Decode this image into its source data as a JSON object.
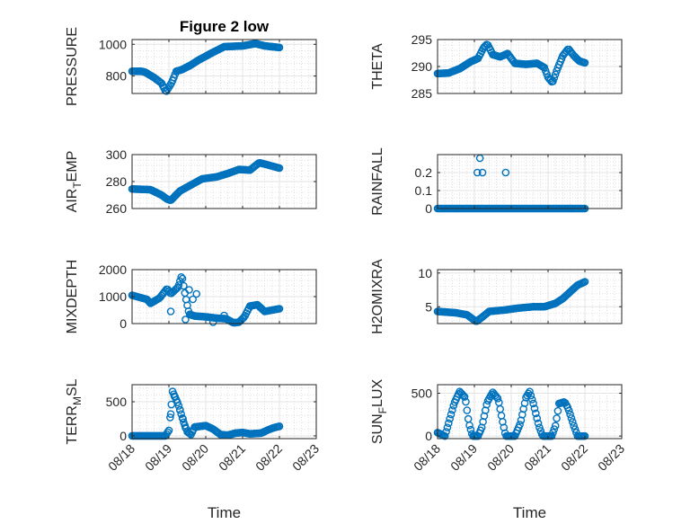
{
  "figure": {
    "title": "Figure 2 low"
  },
  "colors": {
    "marker": "#0072BD",
    "axis": "#262626",
    "grid": "#d9d9d9",
    "background": "#ffffff"
  },
  "chart_data": [
    {
      "type": "scatter",
      "id": "pressure",
      "title": "Figure 2 low",
      "ylabel": "PRESSURE",
      "ylabel_sub": "",
      "ylabel_tail": "",
      "xlabel": "",
      "xlim": [
        0,
        5
      ],
      "ylim": [
        690,
        1030
      ],
      "yticks": [
        800,
        1000
      ],
      "ytick_labels": [
        "800",
        "1000"
      ],
      "xticks": [
        0,
        1,
        2,
        3,
        4,
        5
      ],
      "xtick_labels": [
        "08/18",
        "08/19",
        "08/20",
        "08/21",
        "08/22",
        "08/23"
      ],
      "show_xtick_labels": false,
      "x_end": 4.0,
      "keys": [
        [
          0,
          830
        ],
        [
          0.25,
          830
        ],
        [
          0.35,
          825
        ],
        [
          0.6,
          790
        ],
        [
          0.8,
          755
        ],
        [
          0.92,
          700
        ],
        [
          1.0,
          730
        ],
        [
          1.08,
          760
        ],
        [
          1.2,
          830
        ],
        [
          1.35,
          840
        ],
        [
          1.6,
          870
        ],
        [
          1.8,
          900
        ],
        [
          2.2,
          950
        ],
        [
          2.5,
          985
        ],
        [
          3.0,
          990
        ],
        [
          3.35,
          1005
        ],
        [
          3.6,
          990
        ],
        [
          4.0,
          980
        ]
      ]
    },
    {
      "type": "scatter",
      "id": "theta",
      "title": "",
      "ylabel": "THETA",
      "ylabel_sub": "",
      "ylabel_tail": "",
      "xlabel": "",
      "xlim": [
        0,
        5
      ],
      "ylim": [
        285,
        295
      ],
      "yticks": [
        285,
        290,
        295
      ],
      "ytick_labels": [
        "285",
        "290",
        "295"
      ],
      "xticks": [
        0,
        1,
        2,
        3,
        4,
        5
      ],
      "xtick_labels": [
        "08/18",
        "08/19",
        "08/20",
        "08/21",
        "08/22",
        "08/23"
      ],
      "show_xtick_labels": false,
      "x_end": 4.0,
      "keys": [
        [
          0,
          288.7
        ],
        [
          0.3,
          288.8
        ],
        [
          0.6,
          289.6
        ],
        [
          0.9,
          290.9
        ],
        [
          1.1,
          291.5
        ],
        [
          1.25,
          293.5
        ],
        [
          1.35,
          294.2
        ],
        [
          1.5,
          292.2
        ],
        [
          1.7,
          291.8
        ],
        [
          1.9,
          292.4
        ],
        [
          2.1,
          290.6
        ],
        [
          2.4,
          290.4
        ],
        [
          2.7,
          290.6
        ],
        [
          2.9,
          289.8
        ],
        [
          3.0,
          288.0
        ],
        [
          3.12,
          287.0
        ],
        [
          3.25,
          289.5
        ],
        [
          3.4,
          292.0
        ],
        [
          3.55,
          293.3
        ],
        [
          3.7,
          292.0
        ],
        [
          3.85,
          291.0
        ],
        [
          4.0,
          290.7
        ]
      ]
    },
    {
      "type": "scatter",
      "id": "air-temp",
      "title": "",
      "ylabel": "AIR",
      "ylabel_sub": "T",
      "ylabel_tail": "EMP",
      "xlabel": "",
      "xlim": [
        0,
        5
      ],
      "ylim": [
        260,
        300
      ],
      "yticks": [
        260,
        280,
        300
      ],
      "ytick_labels": [
        "260",
        "280",
        "300"
      ],
      "xticks": [
        0,
        1,
        2,
        3,
        4,
        5
      ],
      "xtick_labels": [
        "08/18",
        "08/19",
        "08/20",
        "08/21",
        "08/22",
        "08/23"
      ],
      "show_xtick_labels": false,
      "x_end": 4.0,
      "keys": [
        [
          0,
          274.5
        ],
        [
          0.5,
          274.0
        ],
        [
          0.8,
          270.0
        ],
        [
          0.95,
          267.0
        ],
        [
          1.05,
          266.0
        ],
        [
          1.3,
          273.0
        ],
        [
          1.6,
          277.5
        ],
        [
          1.9,
          282.0
        ],
        [
          2.3,
          283.5
        ],
        [
          2.6,
          286.0
        ],
        [
          2.9,
          289.0
        ],
        [
          3.2,
          288.5
        ],
        [
          3.45,
          294.0
        ],
        [
          3.6,
          293.0
        ],
        [
          4.0,
          290.0
        ]
      ]
    },
    {
      "type": "scatter",
      "id": "rainfall",
      "title": "",
      "ylabel": "RAINFALL",
      "ylabel_sub": "",
      "ylabel_tail": "",
      "xlabel": "",
      "xlim": [
        0,
        5
      ],
      "ylim": [
        0,
        0.3
      ],
      "yticks": [
        0,
        0.1,
        0.2
      ],
      "ytick_labels": [
        "0",
        "0.1",
        "0.2"
      ],
      "xticks": [
        0,
        1,
        2,
        3,
        4,
        5
      ],
      "xtick_labels": [
        "08/18",
        "08/19",
        "08/20",
        "08/21",
        "08/22",
        "08/23"
      ],
      "show_xtick_labels": false,
      "x_end": 4.0,
      "keys": [
        [
          0,
          0
        ],
        [
          4.0,
          0
        ]
      ],
      "extra_points": [
        [
          1.08,
          0.2
        ],
        [
          1.15,
          0.28
        ],
        [
          1.22,
          0.2
        ],
        [
          1.85,
          0.2
        ]
      ]
    },
    {
      "type": "scatter",
      "id": "mixdepth",
      "title": "",
      "ylabel": "MIXDEPTH",
      "ylabel_sub": "",
      "ylabel_tail": "",
      "xlabel": "",
      "xlim": [
        0,
        5
      ],
      "ylim": [
        0,
        2000
      ],
      "yticks": [
        0,
        1000,
        2000
      ],
      "ytick_labels": [
        "0",
        "1000",
        "2000"
      ],
      "xticks": [
        0,
        1,
        2,
        3,
        4,
        5
      ],
      "xtick_labels": [
        "08/18",
        "08/19",
        "08/20",
        "08/21",
        "08/22",
        "08/23"
      ],
      "show_xtick_labels": false,
      "x_end": 4.0,
      "keys": [
        [
          0,
          1050
        ],
        [
          0.4,
          900
        ],
        [
          0.5,
          750
        ],
        [
          0.75,
          950
        ],
        [
          0.95,
          1300
        ],
        [
          1.05,
          1100
        ],
        [
          1.25,
          1350
        ],
        [
          1.35,
          1800
        ],
        [
          1.45,
          1000
        ],
        [
          1.55,
          350
        ],
        [
          1.7,
          280
        ],
        [
          2.0,
          250
        ],
        [
          2.3,
          200
        ],
        [
          2.55,
          180
        ],
        [
          2.75,
          30
        ],
        [
          2.9,
          50
        ],
        [
          3.05,
          250
        ],
        [
          3.2,
          650
        ],
        [
          3.4,
          700
        ],
        [
          3.6,
          450
        ],
        [
          3.8,
          500
        ],
        [
          4.0,
          550
        ]
      ],
      "extra_points": [
        [
          1.05,
          450
        ],
        [
          1.55,
          1250
        ],
        [
          1.65,
          900
        ],
        [
          1.75,
          1100
        ],
        [
          1.45,
          150
        ],
        [
          2.2,
          50
        ],
        [
          2.5,
          300
        ]
      ]
    },
    {
      "type": "scatter",
      "id": "h2omixra",
      "title": "",
      "ylabel": "H2OMIXRA",
      "ylabel_sub": "",
      "ylabel_tail": "",
      "xlabel": "",
      "xlim": [
        0,
        5
      ],
      "ylim": [
        2.5,
        10.5
      ],
      "yticks": [
        5,
        10
      ],
      "ytick_labels": [
        "5",
        "10"
      ],
      "xticks": [
        0,
        1,
        2,
        3,
        4,
        5
      ],
      "xtick_labels": [
        "08/18",
        "08/19",
        "08/20",
        "08/21",
        "08/22",
        "08/23"
      ],
      "show_xtick_labels": false,
      "x_end": 4.0,
      "keys": [
        [
          0,
          4.3
        ],
        [
          0.5,
          4.1
        ],
        [
          0.8,
          3.8
        ],
        [
          0.95,
          3.2
        ],
        [
          1.05,
          2.8
        ],
        [
          1.2,
          3.4
        ],
        [
          1.4,
          4.3
        ],
        [
          1.8,
          4.5
        ],
        [
          2.2,
          4.8
        ],
        [
          2.6,
          5.0
        ],
        [
          2.9,
          5.0
        ],
        [
          3.2,
          5.5
        ],
        [
          3.4,
          6.2
        ],
        [
          3.6,
          7.2
        ],
        [
          3.8,
          8.2
        ],
        [
          4.0,
          8.7
        ]
      ]
    },
    {
      "type": "scatter",
      "id": "terr-msl",
      "title": "",
      "ylabel": "TERR",
      "ylabel_sub": "M",
      "ylabel_tail": "SL",
      "xlabel": "Time",
      "xlim": [
        0,
        5
      ],
      "ylim": [
        -40,
        750
      ],
      "yticks": [
        0,
        500
      ],
      "ytick_labels": [
        "0",
        "500"
      ],
      "xticks": [
        0,
        1,
        2,
        3,
        4,
        5
      ],
      "xtick_labels": [
        "08/18",
        "08/19",
        "08/20",
        "08/21",
        "08/22",
        "08/23"
      ],
      "show_xtick_labels": true,
      "x_end": 4.0,
      "keys": [
        [
          0,
          0
        ],
        [
          0.9,
          0
        ],
        [
          1.0,
          80
        ],
        [
          1.1,
          650
        ],
        [
          1.25,
          470
        ],
        [
          1.4,
          200
        ],
        [
          1.5,
          60
        ],
        [
          1.6,
          20
        ],
        [
          1.7,
          130
        ],
        [
          2.0,
          150
        ],
        [
          2.2,
          100
        ],
        [
          2.4,
          20
        ],
        [
          2.6,
          10
        ],
        [
          2.8,
          40
        ],
        [
          3.0,
          50
        ],
        [
          3.2,
          30
        ],
        [
          3.5,
          40
        ],
        [
          3.7,
          90
        ],
        [
          3.85,
          120
        ],
        [
          4.0,
          140
        ]
      ],
      "extra_points": [
        [
          1.05,
          320
        ],
        [
          1.15,
          580
        ],
        [
          1.3,
          380
        ],
        [
          1.38,
          250
        ],
        [
          1.45,
          120
        ]
      ]
    },
    {
      "type": "scatter",
      "id": "sun-flux",
      "title": "",
      "ylabel": "SUN",
      "ylabel_sub": "F",
      "ylabel_tail": "LUX",
      "xlabel": "Time",
      "xlim": [
        0,
        5
      ],
      "ylim": [
        -30,
        600
      ],
      "yticks": [
        0,
        500
      ],
      "ytick_labels": [
        "0",
        "500"
      ],
      "xticks": [
        0,
        1,
        2,
        3,
        4,
        5
      ],
      "xtick_labels": [
        "08/18",
        "08/19",
        "08/20",
        "08/21",
        "08/22",
        "08/23"
      ],
      "show_xtick_labels": true,
      "x_end": 4.0,
      "keys": [
        [
          0,
          40
        ],
        [
          0.1,
          20
        ],
        [
          0.2,
          0
        ],
        [
          0.3,
          150
        ],
        [
          0.45,
          380
        ],
        [
          0.6,
          520
        ],
        [
          0.75,
          450
        ],
        [
          0.85,
          150
        ],
        [
          0.95,
          0
        ],
        [
          1.1,
          0
        ],
        [
          1.2,
          100
        ],
        [
          1.35,
          400
        ],
        [
          1.5,
          510
        ],
        [
          1.65,
          430
        ],
        [
          1.75,
          200
        ],
        [
          1.85,
          0
        ],
        [
          2.1,
          0
        ],
        [
          2.25,
          150
        ],
        [
          2.4,
          450
        ],
        [
          2.5,
          520
        ],
        [
          2.6,
          380
        ],
        [
          2.75,
          120
        ],
        [
          2.85,
          0
        ],
        [
          3.1,
          0
        ],
        [
          3.2,
          120
        ],
        [
          3.3,
          380
        ],
        [
          3.45,
          400
        ],
        [
          3.55,
          320
        ],
        [
          3.7,
          120
        ],
        [
          3.8,
          0
        ],
        [
          4.0,
          0
        ]
      ]
    }
  ]
}
